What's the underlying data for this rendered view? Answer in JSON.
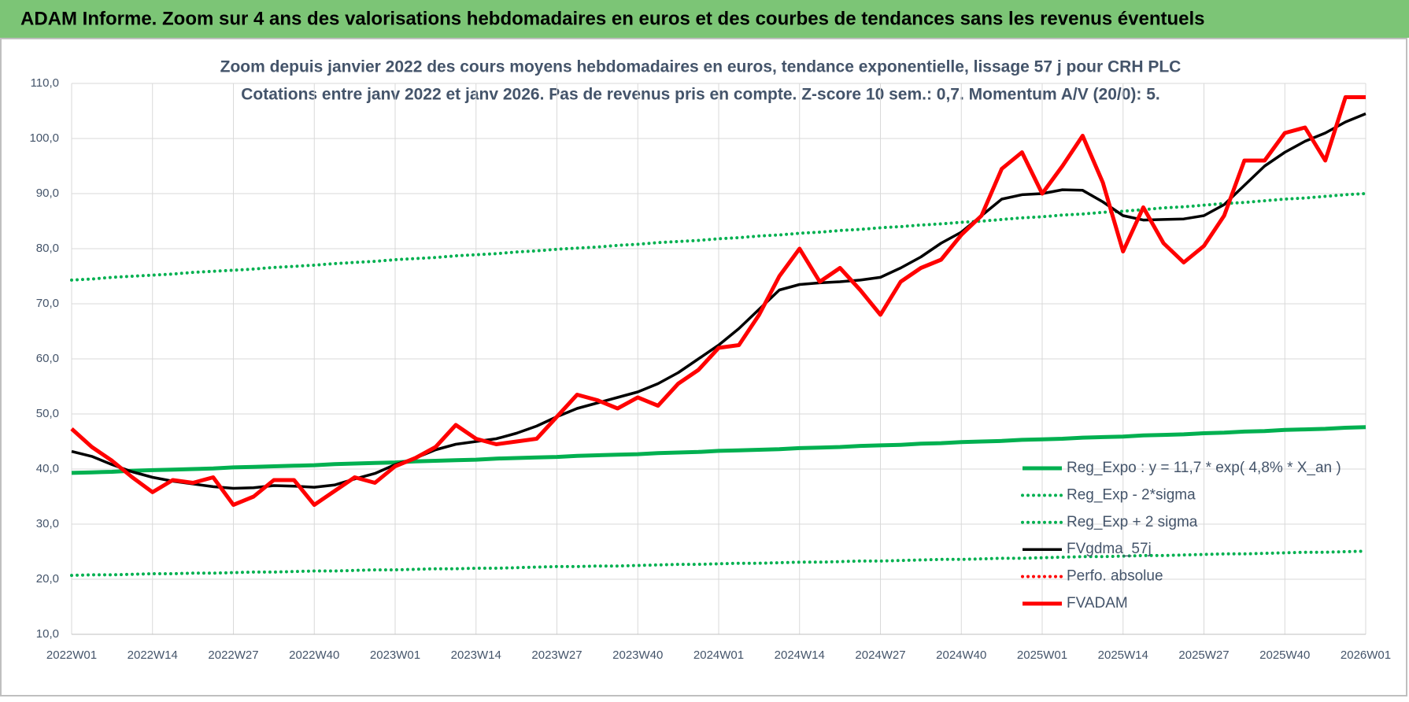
{
  "header": {
    "title": "ADAM Informe. Zoom sur 4 ans des valorisations hebdomadaires en euros et des courbes de tendances sans les revenus éventuels"
  },
  "chart_data": {
    "type": "line",
    "title": "Zoom depuis janvier 2022 des cours moyens hebdomadaires en euros, tendance exponentielle, lissage 57 j pour CRH PLC",
    "subtitle": "Cotations entre janv 2022 et janv 2026. Pas de revenus pris en compte. Z-score 10 sem.: 0,7. Momentum A/V (20/0): 5.",
    "categories": [
      "2022W01",
      null,
      null,
      null,
      "2022W14",
      null,
      null,
      null,
      "2022W27",
      null,
      null,
      null,
      "2022W40",
      null,
      null,
      null,
      "2023W01",
      null,
      null,
      null,
      "2023W14",
      null,
      null,
      null,
      "2023W27",
      null,
      null,
      null,
      "2023W40",
      null,
      null,
      null,
      "2024W01",
      null,
      null,
      null,
      "2024W14",
      null,
      null,
      null,
      "2024W27",
      null,
      null,
      null,
      "2024W40",
      null,
      null,
      null,
      "2025W01",
      null,
      null,
      null,
      "2025W14",
      null,
      null,
      null,
      "2025W27",
      null,
      null,
      null,
      "2025W40",
      null,
      null,
      null,
      "2026W01"
    ],
    "ylim": [
      10,
      110
    ],
    "yticks": [
      {
        "value": 10,
        "label": "10,0"
      },
      {
        "value": 20,
        "label": "20,0"
      },
      {
        "value": 30,
        "label": "30,0"
      },
      {
        "value": 40,
        "label": "40,0"
      },
      {
        "value": 50,
        "label": "50,0"
      },
      {
        "value": 60,
        "label": "60,0"
      },
      {
        "value": 70,
        "label": "70,0"
      },
      {
        "value": 80,
        "label": "80,0"
      },
      {
        "value": 90,
        "label": "90,0"
      },
      {
        "value": 100,
        "label": "100,0"
      },
      {
        "value": 110,
        "label": "110,0"
      }
    ],
    "grid": true,
    "legend": "lower right",
    "series": [
      {
        "name": "Reg_Expo : y = 11,7 * exp( 4,8% *  X_an )",
        "color": "#00b050",
        "style": "solid",
        "values": [
          39.3,
          39.4,
          39.5,
          39.7,
          39.8,
          39.9,
          40.0,
          40.1,
          40.3,
          40.4,
          40.5,
          40.6,
          40.7,
          40.9,
          41.0,
          41.1,
          41.2,
          41.4,
          41.5,
          41.6,
          41.7,
          41.9,
          42.0,
          42.1,
          42.2,
          42.4,
          42.5,
          42.6,
          42.7,
          42.9,
          43.0,
          43.1,
          43.3,
          43.4,
          43.5,
          43.6,
          43.8,
          43.9,
          44.0,
          44.2,
          44.3,
          44.4,
          44.6,
          44.7,
          44.9,
          45.0,
          45.1,
          45.3,
          45.4,
          45.5,
          45.7,
          45.8,
          45.9,
          46.1,
          46.2,
          46.3,
          46.5,
          46.6,
          46.8,
          46.9,
          47.1,
          47.2,
          47.3,
          47.5,
          47.6
        ]
      },
      {
        "name": "Reg_Exp - 2*sigma",
        "color": "#00b050",
        "style": "dotted",
        "values": [
          20.7,
          20.8,
          20.8,
          20.9,
          21.0,
          21.0,
          21.1,
          21.1,
          21.2,
          21.3,
          21.3,
          21.4,
          21.5,
          21.5,
          21.6,
          21.7,
          21.7,
          21.8,
          21.9,
          21.9,
          22.0,
          22.0,
          22.1,
          22.2,
          22.3,
          22.3,
          22.4,
          22.4,
          22.5,
          22.6,
          22.7,
          22.7,
          22.8,
          22.9,
          22.9,
          23.0,
          23.1,
          23.1,
          23.2,
          23.3,
          23.3,
          23.4,
          23.5,
          23.6,
          23.6,
          23.7,
          23.8,
          23.8,
          23.9,
          24.0,
          24.1,
          24.1,
          24.2,
          24.3,
          24.3,
          24.4,
          24.5,
          24.6,
          24.6,
          24.7,
          24.8,
          24.9,
          24.9,
          25.0,
          25.1
        ]
      },
      {
        "name": "Reg_Exp + 2 sigma",
        "color": "#00b050",
        "style": "dotted",
        "values": [
          74.3,
          74.5,
          74.8,
          75.0,
          75.2,
          75.4,
          75.7,
          75.9,
          76.1,
          76.3,
          76.6,
          76.8,
          77.0,
          77.3,
          77.5,
          77.7,
          78.0,
          78.2,
          78.4,
          78.7,
          78.9,
          79.1,
          79.4,
          79.6,
          79.9,
          80.1,
          80.3,
          80.6,
          80.8,
          81.1,
          81.3,
          81.5,
          81.8,
          82.0,
          82.3,
          82.5,
          82.8,
          83.0,
          83.3,
          83.5,
          83.8,
          84.0,
          84.3,
          84.5,
          84.8,
          85.0,
          85.3,
          85.6,
          85.8,
          86.1,
          86.3,
          86.6,
          86.8,
          87.1,
          87.4,
          87.6,
          87.9,
          88.2,
          88.4,
          88.7,
          89.0,
          89.2,
          89.5,
          89.8,
          90.0
        ]
      },
      {
        "name": "FVgdma_57j",
        "color": "#000000",
        "style": "solid",
        "values": [
          43.2,
          42.3,
          40.8,
          39.5,
          38.5,
          37.8,
          37.3,
          36.8,
          36.5,
          36.6,
          37.0,
          36.9,
          36.7,
          37.1,
          38.2,
          39.2,
          40.8,
          42.0,
          43.5,
          44.5,
          45.0,
          45.5,
          46.5,
          47.8,
          49.5,
          51.0,
          52.0,
          53.0,
          54.0,
          55.5,
          57.5,
          60.0,
          62.5,
          65.5,
          69.0,
          72.5,
          73.5,
          73.8,
          74.0,
          74.3,
          74.8,
          76.5,
          78.5,
          81.0,
          83.0,
          86.0,
          89.0,
          89.8,
          90.0,
          90.7,
          90.6,
          88.5,
          86.0,
          85.2,
          85.3,
          85.4,
          86.0,
          88.0,
          91.5,
          95.0,
          97.5,
          99.5,
          101.0,
          103.0,
          104.5
        ]
      },
      {
        "name": "Perfo. absolue",
        "color": "#ff0000",
        "style": "dotted"
      },
      {
        "name": "FVADAM",
        "color": "#ff0000",
        "style": "thick",
        "values": [
          47.3,
          44.0,
          41.5,
          38.5,
          35.8,
          38.0,
          37.5,
          38.5,
          33.5,
          35.0,
          38.0,
          38.0,
          33.5,
          36.0,
          38.5,
          37.5,
          40.5,
          42.0,
          44.0,
          48.0,
          45.5,
          44.5,
          45.0,
          45.5,
          49.5,
          53.5,
          52.5,
          51.0,
          53.0,
          51.5,
          55.5,
          58.0,
          62.0,
          62.5,
          68.0,
          75.0,
          80.0,
          74.0,
          76.5,
          72.5,
          68.0,
          74.0,
          76.5,
          78.0,
          82.5,
          86.0,
          94.5,
          97.5,
          90.0,
          95.0,
          100.5,
          92.0,
          79.5,
          87.5,
          81.0,
          77.5,
          80.5,
          86.0,
          96.0,
          96.0,
          101.0,
          102.0,
          96.0,
          107.5,
          107.5
        ]
      }
    ]
  }
}
